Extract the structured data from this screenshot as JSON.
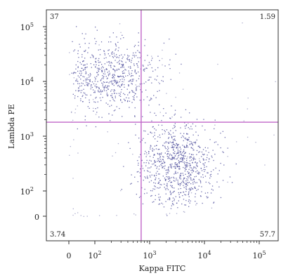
{
  "chart_data": {
    "type": "scatter",
    "xlabel": "Kappa FITC",
    "ylabel": "Lambda PE",
    "x_scale": "biexponential",
    "y_scale": "biexponential",
    "x_ticks": [
      {
        "value": 0,
        "label": "0"
      },
      {
        "value": 100,
        "label": "10",
        "exp": "2"
      },
      {
        "value": 1000,
        "label": "10",
        "exp": "3"
      },
      {
        "value": 10000,
        "label": "10",
        "exp": "4"
      },
      {
        "value": 100000,
        "label": "10",
        "exp": "5"
      }
    ],
    "y_ticks": [
      {
        "value": 0,
        "label": "0"
      },
      {
        "value": 100,
        "label": "10",
        "exp": "2"
      },
      {
        "value": 1000,
        "label": "10",
        "exp": "3"
      },
      {
        "value": 10000,
        "label": "10",
        "exp": "4"
      },
      {
        "value": 100000,
        "label": "10",
        "exp": "5"
      }
    ],
    "gate": {
      "x": 700,
      "y": 1800,
      "color": "#c066c8"
    },
    "quadrants": [
      {
        "position": "top-left",
        "label": "37"
      },
      {
        "position": "top-right",
        "label": "1.59"
      },
      {
        "position": "bottom-left",
        "label": "3.74"
      },
      {
        "position": "bottom-right",
        "label": "57.7"
      }
    ],
    "clusters": [
      {
        "name": "",
        "center": [
          200,
          12000
        ],
        "spread": [
          0.42,
          0.33
        ],
        "count": 650,
        "color": "#4a4a9a"
      },
      {
        "name": "",
        "center": [
          3200,
          300
        ],
        "spread": [
          0.34,
          0.38
        ],
        "count": 850,
        "color": "#4a4a9a"
      },
      {
        "name": "",
        "center": [
          800,
          1500
        ],
        "spread": [
          1.3,
          1.3
        ],
        "count": 110,
        "color": "#8a8ab8"
      }
    ],
    "grid": false,
    "legend": "none"
  }
}
